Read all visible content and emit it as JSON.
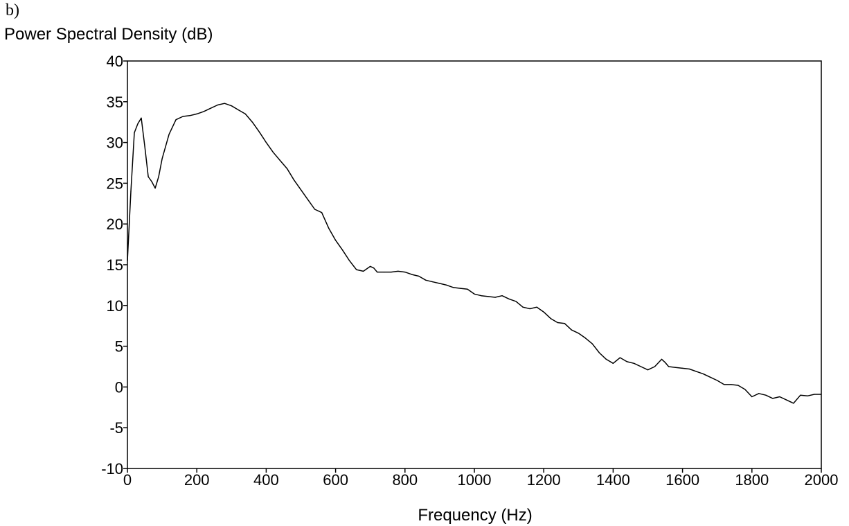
{
  "panel_label": "b)",
  "chart_data": {
    "type": "line",
    "title": "",
    "ylabel": "Power Spectral Density (dB)",
    "xlabel": "Frequency (Hz)",
    "xlim": [
      0,
      2000
    ],
    "ylim": [
      -10,
      40
    ],
    "xticks": [
      "0",
      "200",
      "400",
      "600",
      "800",
      "1000",
      "1200",
      "1400",
      "1600",
      "1800",
      "2000"
    ],
    "yticks": [
      "40",
      "35",
      "30",
      "25",
      "20",
      "15",
      "10",
      "5",
      "0",
      "-5",
      "-10"
    ],
    "grid": false,
    "legend": "none",
    "series": [
      {
        "color": "#000000",
        "x": [
          0,
          10,
          20,
          30,
          40,
          50,
          60,
          70,
          80,
          90,
          100,
          120,
          140,
          160,
          180,
          200,
          220,
          240,
          260,
          280,
          300,
          320,
          340,
          360,
          380,
          400,
          420,
          440,
          460,
          480,
          500,
          520,
          540,
          560,
          580,
          600,
          620,
          640,
          660,
          680,
          700,
          710,
          720,
          740,
          760,
          780,
          800,
          820,
          840,
          860,
          880,
          900,
          920,
          940,
          960,
          980,
          1000,
          1020,
          1040,
          1060,
          1080,
          1100,
          1120,
          1140,
          1160,
          1180,
          1200,
          1220,
          1240,
          1260,
          1280,
          1300,
          1320,
          1340,
          1360,
          1380,
          1400,
          1420,
          1440,
          1460,
          1480,
          1500,
          1520,
          1540,
          1550,
          1560,
          1580,
          1600,
          1620,
          1640,
          1660,
          1680,
          1700,
          1720,
          1740,
          1760,
          1780,
          1800,
          1820,
          1840,
          1860,
          1880,
          1900,
          1920,
          1940,
          1960,
          1980,
          2000
        ],
        "y": [
          15.5,
          24,
          31.2,
          32.3,
          33,
          29.5,
          25.8,
          25.2,
          24.4,
          25.8,
          28,
          31,
          32.8,
          33.2,
          33.3,
          33.5,
          33.8,
          34.2,
          34.6,
          34.8,
          34.5,
          34,
          33.5,
          32.5,
          31.3,
          30,
          28.8,
          27.8,
          26.8,
          25.4,
          24.2,
          23,
          21.8,
          21.4,
          19.5,
          18,
          16.8,
          15.5,
          14.4,
          14.2,
          14.8,
          14.6,
          14.1,
          14.1,
          14.1,
          14.2,
          14.1,
          13.8,
          13.6,
          13.1,
          12.9,
          12.7,
          12.5,
          12.2,
          12.1,
          12,
          11.4,
          11.2,
          11.1,
          11,
          11.2,
          10.8,
          10.5,
          9.8,
          9.6,
          9.8,
          9.2,
          8.4,
          7.9,
          7.8,
          7,
          6.6,
          6,
          5.3,
          4.2,
          3.4,
          2.9,
          3.6,
          3.1,
          2.9,
          2.5,
          2.1,
          2.5,
          3.4,
          3,
          2.5,
          2.4,
          2.3,
          2.2,
          1.9,
          1.6,
          1.2,
          0.8,
          0.3,
          0.3,
          0.2,
          -0.3,
          -1.2,
          -0.8,
          -1.0,
          -1.4,
          -1.2,
          -1.6,
          -2.0,
          -1.0,
          -1.1,
          -0.9,
          -0.9
        ]
      }
    ]
  }
}
